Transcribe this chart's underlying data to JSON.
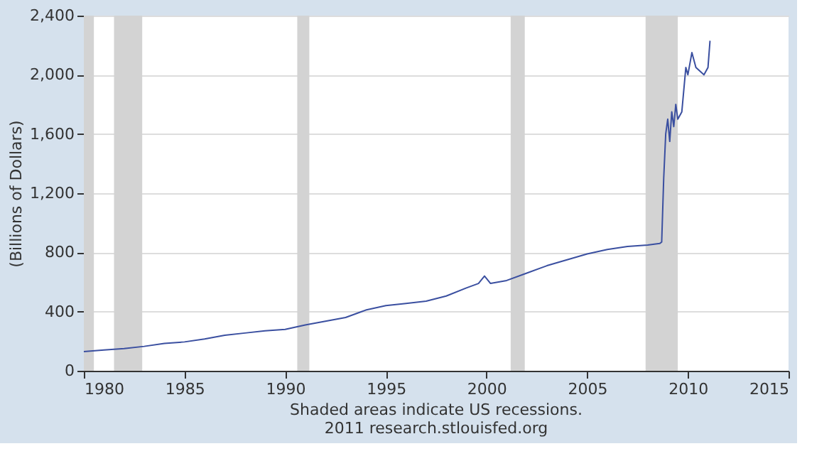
{
  "chart_data": {
    "type": "line",
    "ylabel": "(Billions of Dollars)",
    "x": [
      1980.0,
      1981.0,
      1982.0,
      1983.0,
      1984.0,
      1985.0,
      1986.0,
      1987.0,
      1988.0,
      1989.0,
      1990.0,
      1991.0,
      1992.0,
      1993.0,
      1994.0,
      1995.0,
      1996.0,
      1997.0,
      1998.0,
      1999.0,
      1999.6,
      1999.9,
      2000.2,
      2001.0,
      2002.0,
      2003.0,
      2004.0,
      2005.0,
      2006.0,
      2007.0,
      2008.0,
      2008.6,
      2008.7,
      2008.8,
      2008.9,
      2009.0,
      2009.1,
      2009.2,
      2009.3,
      2009.4,
      2009.5,
      2009.7,
      2009.9,
      2010.0,
      2010.2,
      2010.4,
      2010.8,
      2011.0,
      2011.1
    ],
    "series": [
      {
        "color": "#3a4fa0",
        "values": [
          130,
          140,
          150,
          165,
          185,
          195,
          215,
          240,
          255,
          270,
          280,
          310,
          335,
          360,
          410,
          440,
          455,
          470,
          505,
          560,
          590,
          640,
          590,
          610,
          660,
          710,
          750,
          790,
          820,
          840,
          850,
          860,
          870,
          1300,
          1600,
          1700,
          1550,
          1750,
          1650,
          1800,
          1700,
          1750,
          2050,
          2000,
          2150,
          2050,
          2000,
          2050,
          2230
        ]
      }
    ],
    "xlim": [
      1980,
      2015
    ],
    "xticks": [
      1980,
      1985,
      1990,
      1995,
      2000,
      2005,
      2010,
      2015
    ],
    "ylim": [
      0,
      2400
    ],
    "yticks": [
      0,
      400,
      800,
      {
        "value": 1200,
        "label": "1,200"
      },
      {
        "value": 1600,
        "label": "1,600"
      },
      {
        "value": 2000,
        "label": "2,000"
      },
      {
        "value": 2400,
        "label": "2,400"
      }
    ],
    "grid": "y",
    "line_style": "solid",
    "bands": [
      {
        "axis": "x",
        "from": 1980.0,
        "to": 1980.5,
        "color": "#d3d3d3"
      },
      {
        "axis": "x",
        "from": 1981.5,
        "to": 1982.9,
        "color": "#d3d3d3"
      },
      {
        "axis": "x",
        "from": 1990.6,
        "to": 1991.2,
        "color": "#d3d3d3"
      },
      {
        "axis": "x",
        "from": 2001.2,
        "to": 2001.9,
        "color": "#d3d3d3"
      },
      {
        "axis": "x",
        "from": 2007.9,
        "to": 2009.5,
        "color": "#d3d3d3"
      }
    ],
    "annotations": [
      "Shaded areas indicate US recessions.",
      "2011 research.stlouisfed.org"
    ]
  }
}
